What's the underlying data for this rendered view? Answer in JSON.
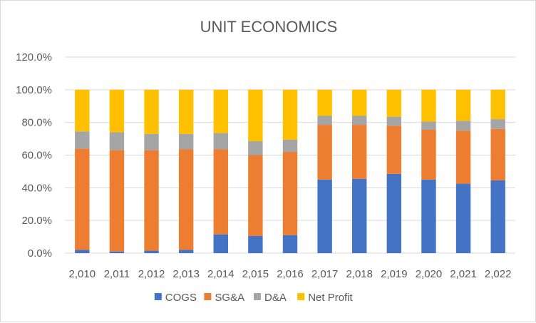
{
  "chart_data": {
    "type": "bar",
    "stacked": true,
    "title": "UNIT ECONOMICS",
    "categories": [
      "2,010",
      "2,011",
      "2,012",
      "2,013",
      "2,014",
      "2,015",
      "2,016",
      "2,017",
      "2,018",
      "2,019",
      "2,020",
      "2,021",
      "2,022"
    ],
    "ylim": [
      0,
      120
    ],
    "y_ticks": [
      "0.0%",
      "20.0%",
      "40.0%",
      "60.0%",
      "80.0%",
      "100.0%",
      "120.0%"
    ],
    "grid": true,
    "legend_position": "bottom",
    "series": [
      {
        "name": "COGS",
        "color": "#4472c4",
        "values": [
          2,
          1,
          1.5,
          2,
          11.5,
          10.5,
          11,
          45,
          45.5,
          48.5,
          45,
          42.5,
          44.5
        ]
      },
      {
        "name": "SG&A",
        "color": "#ed7d31",
        "values": [
          62,
          62,
          61.5,
          61.5,
          52,
          49.5,
          51,
          33.5,
          33,
          29.5,
          30.5,
          32.5,
          31.5
        ]
      },
      {
        "name": "D&A",
        "color": "#a5a5a5",
        "values": [
          10.5,
          11,
          10,
          9.5,
          10,
          8.5,
          7.5,
          5.5,
          5.5,
          5.5,
          5,
          6,
          6
        ]
      },
      {
        "name": "Net Profit",
        "color": "#ffc000",
        "values": [
          25.5,
          26,
          27,
          27,
          26.5,
          31.5,
          30.5,
          16,
          16,
          16.5,
          19.5,
          19,
          18
        ]
      }
    ]
  }
}
